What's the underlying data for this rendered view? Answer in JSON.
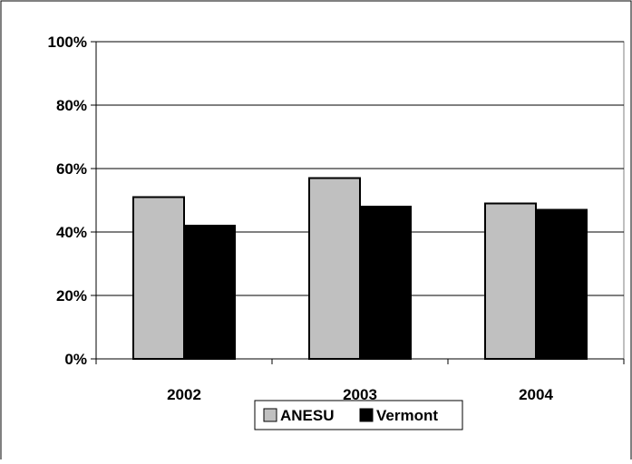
{
  "chart_data": {
    "type": "bar",
    "title": "",
    "xlabel": "",
    "ylabel": "",
    "categories": [
      "2002",
      "2003",
      "2004"
    ],
    "series": [
      {
        "name": "ANESU",
        "values": [
          51,
          57,
          49
        ],
        "color": "#c0c0c0"
      },
      {
        "name": "Vermont",
        "values": [
          42,
          48,
          47
        ],
        "color": "#000000"
      }
    ],
    "ylim": [
      0,
      100
    ],
    "y_ticks": [
      0,
      20,
      40,
      60,
      80,
      100
    ],
    "y_tick_labels": [
      "0%",
      "20%",
      "40%",
      "60%",
      "80%",
      "100%"
    ],
    "grid": true,
    "legend_position": "bottom",
    "plot_background": "#ffffff",
    "bar_outline_color": "#000000"
  }
}
